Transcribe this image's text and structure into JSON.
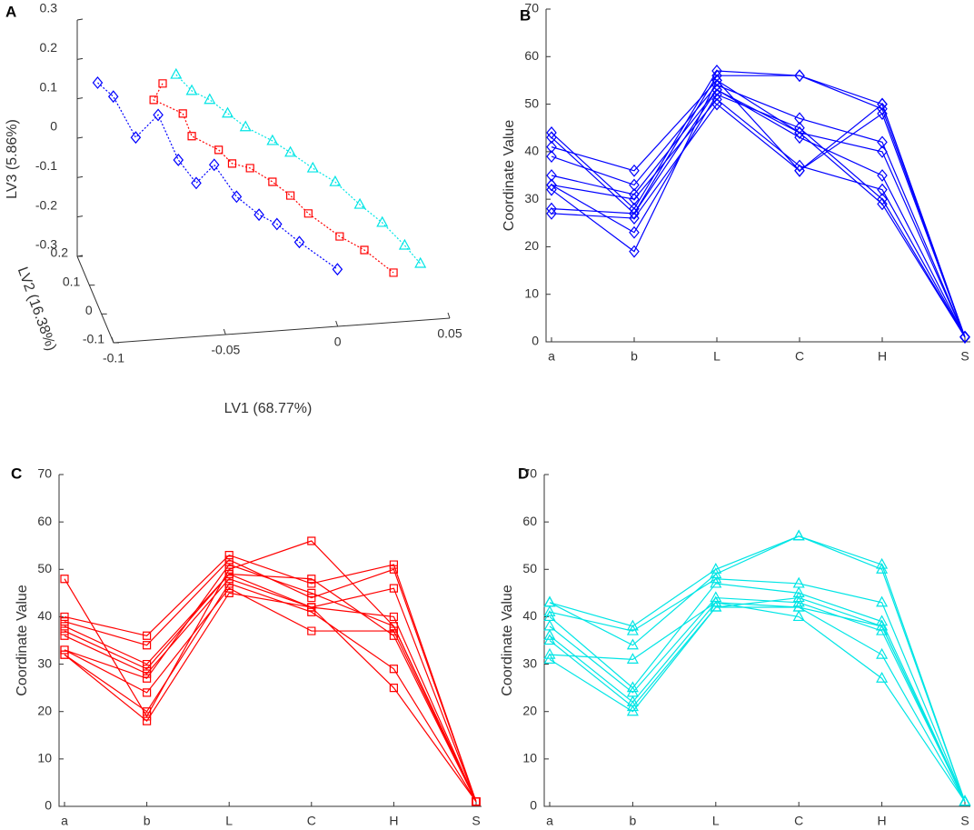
{
  "chart_data": [
    {
      "type": "scatter3d",
      "panel_label": "A",
      "xlabel": "LV1 (68.77%)",
      "ylabel": "LV2 (16.38%)",
      "zlabel": "LV3 (5.86%)",
      "xlim": [
        -0.1,
        0.05
      ],
      "xticks": [
        -0.1,
        -0.05,
        0,
        0.05
      ],
      "ylim": [
        -0.1,
        0.2
      ],
      "yticks": [
        -0.1,
        0,
        0.1,
        0.2
      ],
      "zlim": [
        -0.3,
        0.3
      ],
      "zticks": [
        -0.3,
        -0.2,
        -0.1,
        0,
        0.1,
        0.2,
        0.3
      ],
      "series": [
        {
          "color": "#0000ff",
          "marker": "diamond",
          "x": [
            -0.099,
            -0.092,
            -0.082,
            -0.072,
            -0.063,
            -0.055,
            -0.047,
            -0.037,
            -0.027,
            -0.019,
            -0.009,
            0.008
          ],
          "y": [
            0.05,
            0.05,
            0.05,
            0.05,
            0.05,
            0.05,
            0.05,
            0.05,
            0.05,
            0.05,
            0.05,
            0.05
          ],
          "z": [
            0.25,
            0.212,
            0.104,
            0.157,
            0.039,
            -0.023,
            0.02,
            -0.065,
            -0.115,
            -0.142,
            -0.192,
            -0.268
          ]
        },
        {
          "color": "#ff0000",
          "marker": "square",
          "x": [
            -0.07,
            -0.074,
            -0.061,
            -0.057,
            -0.045,
            -0.039,
            -0.031,
            -0.021,
            -0.013,
            -0.005,
            0.009,
            0.02,
            0.033
          ],
          "y": [
            0.05,
            0.05,
            0.05,
            0.05,
            0.05,
            0.05,
            0.05,
            0.05,
            0.05,
            0.05,
            0.05,
            0.05,
            0.05
          ],
          "z": [
            0.236,
            0.196,
            0.156,
            0.097,
            0.057,
            0.02,
            0.005,
            -0.034,
            -0.072,
            -0.121,
            -0.185,
            -0.224,
            -0.287
          ]
        },
        {
          "color": "#00e5e5",
          "marker": "triangle",
          "x": [
            -0.064,
            -0.057,
            -0.049,
            -0.041,
            -0.033,
            -0.021,
            -0.013,
            -0.003,
            0.007,
            0.018,
            0.028,
            0.038,
            0.045
          ],
          "y": [
            0.05,
            0.05,
            0.05,
            0.05,
            0.05,
            0.05,
            0.05,
            0.05,
            0.05,
            0.05,
            0.05,
            0.05,
            0.05
          ],
          "z": [
            0.256,
            0.212,
            0.186,
            0.148,
            0.11,
            0.07,
            0.037,
            -0.007,
            -0.046,
            -0.108,
            -0.158,
            -0.22,
            -0.269
          ]
        }
      ]
    },
    {
      "type": "line",
      "panel_label": "B",
      "ylabel": "Coordinate Value",
      "categories": [
        "a",
        "b",
        "L",
        "C",
        "H",
        "S"
      ],
      "ylim": [
        0,
        70
      ],
      "yticks": [
        0,
        10,
        20,
        30,
        40,
        50,
        60,
        70
      ],
      "series": [
        {
          "color": "#0000ff",
          "marker": "diamond",
          "values": [
            44,
            28,
            57,
            56,
            50,
            1
          ]
        },
        {
          "color": "#0000ff",
          "marker": "diamond",
          "values": [
            43,
            27,
            56,
            56,
            49,
            1
          ]
        },
        {
          "color": "#0000ff",
          "marker": "diamond",
          "values": [
            41,
            36,
            55,
            44,
            40,
            1
          ]
        },
        {
          "color": "#0000ff",
          "marker": "diamond",
          "values": [
            39,
            33,
            54,
            47,
            42,
            1
          ]
        },
        {
          "color": "#0000ff",
          "marker": "diamond",
          "values": [
            35,
            31,
            53,
            43,
            35,
            1
          ]
        },
        {
          "color": "#0000ff",
          "marker": "diamond",
          "values": [
            33,
            23,
            52,
            45,
            30,
            1
          ]
        },
        {
          "color": "#0000ff",
          "marker": "diamond",
          "values": [
            33,
            30,
            51,
            37,
            32,
            1
          ]
        },
        {
          "color": "#0000ff",
          "marker": "diamond",
          "values": [
            32,
            19,
            55,
            36,
            50,
            1
          ]
        },
        {
          "color": "#0000ff",
          "marker": "diamond",
          "values": [
            28,
            27,
            53,
            44,
            29,
            1
          ]
        },
        {
          "color": "#0000ff",
          "marker": "diamond",
          "values": [
            27,
            26,
            50,
            36,
            48,
            1
          ]
        }
      ]
    },
    {
      "type": "line",
      "panel_label": "C",
      "ylabel": "Coordinate Value",
      "categories": [
        "a",
        "b",
        "L",
        "C",
        "H",
        "S"
      ],
      "ylim": [
        0,
        70
      ],
      "yticks": [
        0,
        10,
        20,
        30,
        40,
        50,
        60,
        70
      ],
      "series": [
        {
          "color": "#ff0000",
          "marker": "square",
          "values": [
            48,
            19,
            50,
            56,
            38,
            1
          ]
        },
        {
          "color": "#ff0000",
          "marker": "square",
          "values": [
            40,
            36,
            53,
            47,
            51,
            1
          ]
        },
        {
          "color": "#ff0000",
          "marker": "square",
          "values": [
            39,
            34,
            52,
            44,
            50,
            1
          ]
        },
        {
          "color": "#ff0000",
          "marker": "square",
          "values": [
            37,
            29,
            49,
            42,
            46,
            1
          ]
        },
        {
          "color": "#ff0000",
          "marker": "square",
          "values": [
            36,
            28,
            48,
            42,
            40,
            1
          ]
        },
        {
          "color": "#ff0000",
          "marker": "square",
          "values": [
            33,
            27,
            51,
            45,
            38,
            1
          ]
        },
        {
          "color": "#ff0000",
          "marker": "square",
          "values": [
            33,
            24,
            46,
            37,
            37,
            1
          ]
        },
        {
          "color": "#ff0000",
          "marker": "square",
          "values": [
            32,
            20,
            47,
            41,
            29,
            1
          ]
        },
        {
          "color": "#ff0000",
          "marker": "square",
          "values": [
            32,
            18,
            45,
            42,
            25,
            1
          ]
        },
        {
          "color": "#ff0000",
          "marker": "square",
          "values": [
            38,
            30,
            49,
            48,
            36,
            1
          ]
        }
      ]
    },
    {
      "type": "line",
      "panel_label": "D",
      "ylabel": "Coordinate Value",
      "categories": [
        "a",
        "b",
        "L",
        "C",
        "H",
        "S"
      ],
      "ylim": [
        0,
        70
      ],
      "yticks": [
        0,
        10,
        20,
        30,
        40,
        50,
        60,
        70
      ],
      "series": [
        {
          "color": "#00e5e5",
          "marker": "triangle",
          "values": [
            43,
            38,
            50,
            57,
            51,
            1
          ]
        },
        {
          "color": "#00e5e5",
          "marker": "triangle",
          "values": [
            43,
            34,
            49,
            57,
            50,
            1
          ]
        },
        {
          "color": "#00e5e5",
          "marker": "triangle",
          "values": [
            41,
            37,
            48,
            47,
            43,
            1
          ]
        },
        {
          "color": "#00e5e5",
          "marker": "triangle",
          "values": [
            40,
            25,
            47,
            45,
            39,
            1
          ]
        },
        {
          "color": "#00e5e5",
          "marker": "triangle",
          "values": [
            38,
            24,
            44,
            43,
            37,
            1
          ]
        },
        {
          "color": "#00e5e5",
          "marker": "triangle",
          "values": [
            36,
            22,
            43,
            42,
            38,
            1
          ]
        },
        {
          "color": "#00e5e5",
          "marker": "triangle",
          "values": [
            35,
            21,
            42,
            42,
            32,
            1
          ]
        },
        {
          "color": "#00e5e5",
          "marker": "triangle",
          "values": [
            32,
            31,
            43,
            40,
            27,
            1
          ]
        },
        {
          "color": "#00e5e5",
          "marker": "triangle",
          "values": [
            31,
            20,
            42,
            44,
            38,
            1
          ]
        }
      ]
    }
  ]
}
